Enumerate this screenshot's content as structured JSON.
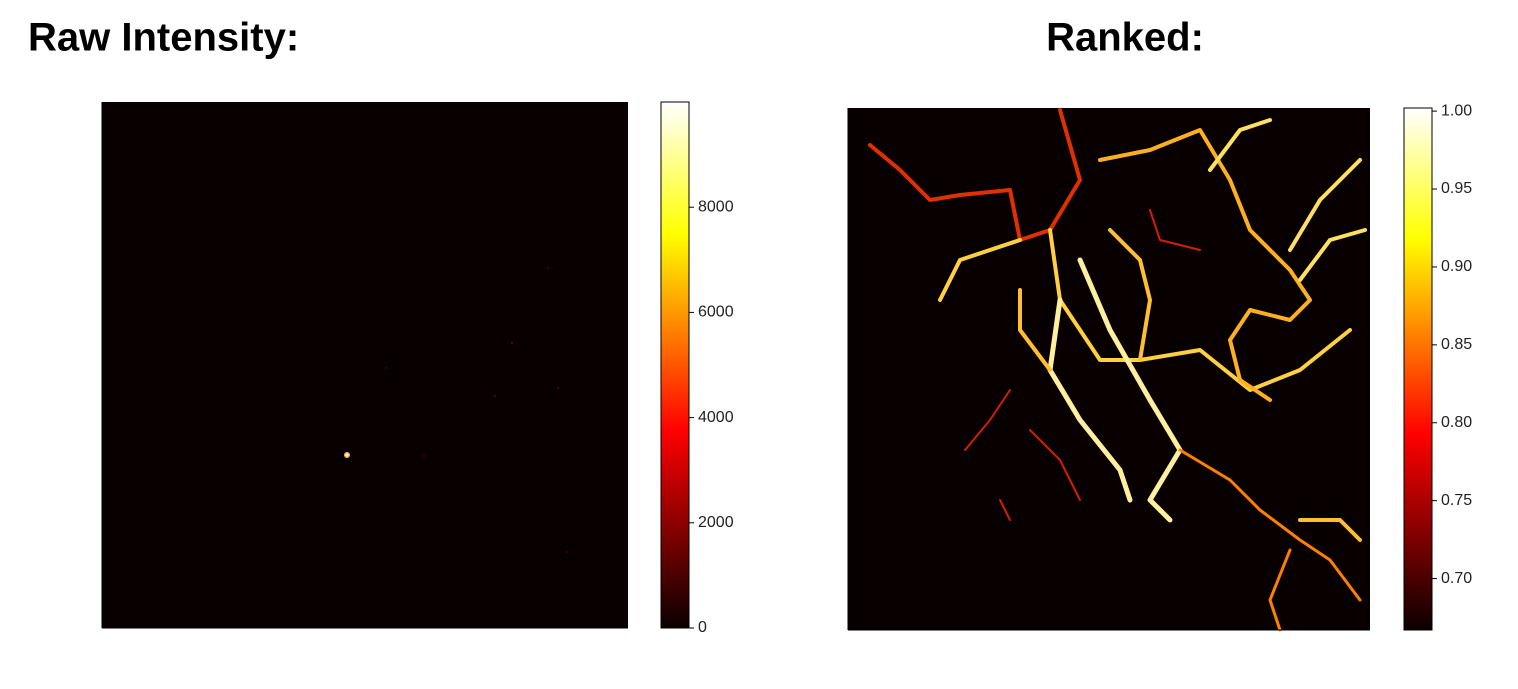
{
  "chart_data": [
    {
      "type": "heatmap",
      "title": "Raw Intensity:",
      "colormap": "hot",
      "clim": [
        0,
        10000
      ],
      "cticks": [
        0,
        2000,
        4000,
        6000,
        8000
      ]
    },
    {
      "type": "heatmap",
      "title": "Ranked:",
      "colormap": "hot",
      "clim": [
        0.667,
        1.002
      ],
      "cticks": [
        {
          "value": 0.7,
          "label": "0.70"
        },
        0.75,
        {
          "value": 0.8,
          "label": "0.80"
        },
        0.85,
        {
          "value": 0.9,
          "label": "0.90"
        },
        0.95,
        {
          "value": 1.0,
          "label": "1.00"
        }
      ]
    }
  ]
}
